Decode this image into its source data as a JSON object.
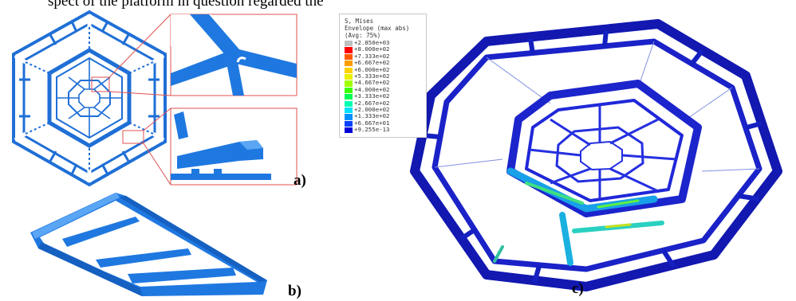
{
  "top_text": "spect of the platform in question regarded the",
  "labels": {
    "a": "a)",
    "b": "b)",
    "c": "c)"
  },
  "legend": {
    "title_line1": "S, Mises",
    "title_line2": "Envelope (max abs)",
    "title_line3": "(Avg: 75%)",
    "entries": [
      {
        "value": "+2.850e+03",
        "color": "#c0c0c0"
      },
      {
        "value": "+8.000e+02",
        "color": "#ff0000"
      },
      {
        "value": "+7.333e+02",
        "color": "#ff5a00"
      },
      {
        "value": "+6.667e+02",
        "color": "#ff9c00"
      },
      {
        "value": "+6.000e+02",
        "color": "#ffd200"
      },
      {
        "value": "+5.333e+02",
        "color": "#e9f000"
      },
      {
        "value": "+4.667e+02",
        "color": "#a0ff00"
      },
      {
        "value": "+4.000e+02",
        "color": "#3cff00"
      },
      {
        "value": "+3.333e+02",
        "color": "#00ff50"
      },
      {
        "value": "+2.667e+02",
        "color": "#00ffb0"
      },
      {
        "value": "+2.000e+02",
        "color": "#00e0ff"
      },
      {
        "value": "+1.333e+02",
        "color": "#0090ff"
      },
      {
        "value": "+6.667e+01",
        "color": "#0040ff"
      },
      {
        "value": "+9.255e-13",
        "color": "#0000d8"
      }
    ]
  }
}
